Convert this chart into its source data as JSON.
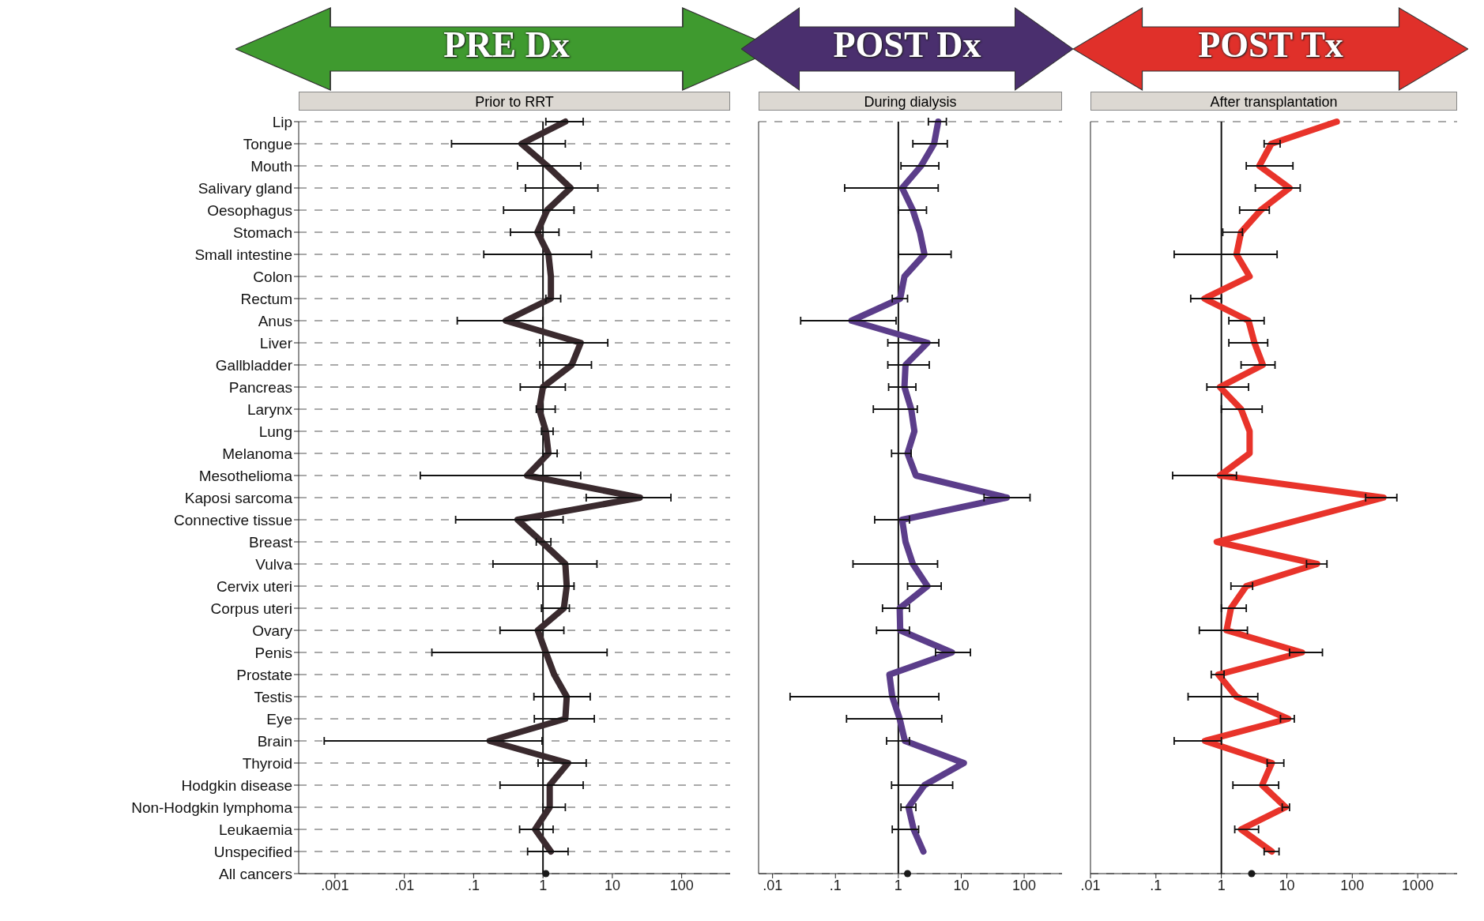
{
  "chart_data": [
    {
      "type": "line",
      "title": "PRE Dx",
      "subtitle": "Prior to RRT",
      "categories": [
        "Lip",
        "Tongue",
        "Mouth",
        "Salivary gland",
        "Oesophagus",
        "Stomach",
        "Small intestine",
        "Colon",
        "Rectum",
        "Anus",
        "Liver",
        "Gallbladder",
        "Pancreas",
        "Larynx",
        "Lung",
        "Melanoma",
        "Mesothelioma",
        "Kaposi sarcoma",
        "Connective tissue",
        "Breast",
        "Vulva",
        "Cervix uteri",
        "Corpus uteri",
        "Ovary",
        "Penis",
        "Prostate",
        "Testis",
        "Eye",
        "Brain",
        "Thyroid",
        "Hodgkin disease",
        "Non-Hodgkin lymphoma",
        "Leukaemia",
        "Unspecified",
        "All cancers"
      ],
      "series": [
        {
          "color": "#3a2a2e",
          "values": [
            2.1,
            0.49,
            1.15,
            2.5,
            1.15,
            0.83,
            1.2,
            1.3,
            1.3,
            0.29,
            3.5,
            2.6,
            1.0,
            0.88,
            1.1,
            1.2,
            0.59,
            25,
            0.43,
            0.96,
            2.1,
            2.2,
            2.0,
            0.84,
            1.1,
            1.45,
            2.2,
            2.1,
            0.17,
            2.3,
            1.25,
            1.25,
            0.77,
            1.3,
            null
          ],
          "errors": [
            [
              1.1,
              3.8
            ],
            [
              0.048,
              2.1
            ],
            [
              0.43,
              3.5
            ],
            [
              0.56,
              6.2
            ],
            [
              0.27,
              2.8
            ],
            [
              0.34,
              1.7
            ],
            [
              0.14,
              5.0
            ],
            null,
            [
              1.1,
              1.8
            ],
            [
              0.058,
              1.0
            ],
            [
              0.9,
              8.6
            ],
            [
              0.9,
              5.0
            ],
            [
              0.47,
              2.1
            ],
            [
              0.8,
              1.5
            ],
            [
              0.95,
              1.4
            ],
            [
              1.0,
              1.6
            ],
            [
              0.017,
              3.5
            ],
            [
              4.2,
              70
            ],
            [
              0.055,
              1.95
            ],
            [
              0.8,
              1.3
            ],
            [
              0.19,
              6
            ],
            [
              0.85,
              2.8
            ],
            [
              0.95,
              2.4
            ],
            [
              0.24,
              2.0
            ],
            [
              0.025,
              8.4
            ],
            null,
            [
              0.74,
              4.8
            ],
            [
              0.75,
              5.5
            ],
            [
              0.0007,
              0.97
            ],
            [
              0.85,
              4.2
            ],
            [
              0.24,
              3.8
            ],
            [
              1.0,
              2.1
            ],
            [
              0.46,
              1.4
            ],
            [
              0.6,
              2.3
            ],
            null
          ]
        },
        {
          "type": "scatter",
          "color": "#1a1a1a",
          "values": [
            null,
            null,
            null,
            null,
            null,
            null,
            null,
            null,
            null,
            null,
            null,
            null,
            null,
            null,
            null,
            null,
            null,
            null,
            null,
            null,
            null,
            null,
            null,
            null,
            null,
            null,
            null,
            null,
            null,
            null,
            null,
            null,
            null,
            null,
            1.1
          ]
        }
      ],
      "orientation": "horizontal",
      "log": "x",
      "xlim": [
        0.0003,
        500
      ],
      "xticks": [
        {
          "value": 0.001,
          "label": ".001"
        },
        {
          "value": 0.01,
          "label": ".01"
        },
        {
          "value": 0.1,
          "label": ".1"
        },
        1,
        10,
        100
      ],
      "grid": "y",
      "ref_lines": [
        {
          "axis": "x",
          "value": 1
        }
      ]
    },
    {
      "type": "line",
      "title": "POST Dx",
      "subtitle": "During dialysis",
      "categories": [
        null,
        null,
        null,
        null,
        null,
        null,
        null,
        null,
        null,
        null,
        null,
        null,
        null,
        null,
        null,
        null,
        null,
        null,
        null,
        null,
        null,
        null,
        null,
        null,
        null,
        null,
        null,
        null,
        null,
        null,
        null,
        null,
        null,
        null,
        null
      ],
      "series": [
        {
          "color": "#5b3d8a",
          "values": [
            4.3,
            3.7,
            2.3,
            1.15,
            1.7,
            2.2,
            2.6,
            1.25,
            1.07,
            0.18,
            2.9,
            1.3,
            1.25,
            1.6,
            1.8,
            1.4,
            1.9,
            53,
            1.15,
            1.3,
            1.7,
            2.9,
            1.05,
            1.07,
            7.1,
            0.72,
            0.8,
            1.05,
            1.27,
            11,
            2.6,
            1.45,
            1.75,
            2.5,
            null
          ],
          "errors": [
            [
              3.0,
              5.8
            ],
            [
              1.7,
              6.0
            ],
            [
              1.1,
              4.4
            ],
            [
              0.14,
              4.3
            ],
            [
              1.0,
              2.8
            ],
            null,
            [
              1.0,
              6.9
            ],
            null,
            [
              0.8,
              1.4
            ],
            [
              0.028,
              0.92
            ],
            [
              0.68,
              4.4
            ],
            [
              0.68,
              3.1
            ],
            [
              0.7,
              1.9
            ],
            [
              0.4,
              2.0
            ],
            null,
            [
              0.78,
              1.6
            ],
            null,
            [
              23,
              124
            ],
            [
              0.42,
              1.5
            ],
            null,
            [
              0.19,
              4.2
            ],
            [
              1.4,
              4.8
            ],
            [
              0.56,
              1.5
            ],
            [
              0.45,
              1.5
            ],
            [
              3.9,
              14
            ],
            null,
            [
              0.019,
              4.4
            ],
            [
              0.15,
              4.9
            ],
            [
              0.65,
              1.5
            ],
            null,
            [
              0.78,
              7.3
            ],
            [
              1.1,
              1.9
            ],
            [
              0.8,
              2.1
            ],
            null,
            null
          ]
        },
        {
          "type": "scatter",
          "color": "#1a1a1a",
          "values": [
            null,
            null,
            null,
            null,
            null,
            null,
            null,
            null,
            null,
            null,
            null,
            null,
            null,
            null,
            null,
            null,
            null,
            null,
            null,
            null,
            null,
            null,
            null,
            null,
            null,
            null,
            null,
            null,
            null,
            null,
            null,
            null,
            null,
            null,
            1.4
          ]
        }
      ],
      "orientation": "horizontal",
      "log": "x",
      "xlim": [
        0.006,
        400
      ],
      "xticks": [
        {
          "value": 0.01,
          "label": ".01"
        },
        {
          "value": 0.1,
          "label": ".1"
        },
        1,
        10,
        100
      ],
      "grid": "y",
      "tick_labels": "x",
      "ref_lines": [
        {
          "axis": "x",
          "value": 1
        }
      ]
    },
    {
      "type": "line",
      "title": "POST Tx",
      "subtitle": "After transplantation",
      "categories": [
        null,
        null,
        null,
        null,
        null,
        null,
        null,
        null,
        null,
        null,
        null,
        null,
        null,
        null,
        null,
        null,
        null,
        null,
        null,
        null,
        null,
        null,
        null,
        null,
        null,
        null,
        null,
        null,
        null,
        null,
        null,
        null,
        null,
        null,
        null
      ],
      "series": [
        {
          "color": "#e8332a",
          "values": [
            58,
            5.8,
            3.8,
            11,
            4.0,
            2.0,
            1.7,
            2.7,
            0.55,
            2.6,
            3.2,
            4.3,
            0.95,
            2.0,
            2.7,
            2.7,
            0.95,
            300,
            16,
            0.85,
            29,
            2.4,
            1.4,
            1.2,
            17,
            0.9,
            1.7,
            10.5,
            0.56,
            5.9,
            4.2,
            9.6,
            2.0,
            5.9,
            null
          ],
          "errors": [
            null,
            [
              4.5,
              7.9
            ],
            [
              2.4,
              12.4
            ],
            [
              3.3,
              16
            ],
            [
              1.9,
              5.4
            ],
            [
              1.05,
              2.1
            ],
            [
              0.19,
              7.1
            ],
            null,
            [
              0.34,
              1.0
            ],
            [
              1.3,
              4.5
            ],
            [
              1.3,
              5.1
            ],
            [
              2.0,
              6.6
            ],
            [
              0.6,
              2.6
            ],
            [
              1.0,
              4.2
            ],
            null,
            null,
            [
              0.18,
              1.7
            ],
            [
              160,
              480
            ],
            null,
            null,
            [
              20,
              41
            ],
            [
              1.4,
              3.0
            ],
            [
              1.0,
              2.4
            ],
            [
              0.46,
              2.5
            ],
            [
              11,
              35
            ],
            [
              0.7,
              1.1
            ],
            [
              0.31,
              3.6
            ],
            [
              8,
              13
            ],
            [
              0.19,
              1.0
            ],
            [
              5,
              9
            ],
            [
              1.5,
              7.5
            ],
            [
              8.5,
              11
            ],
            [
              1.6,
              3.7
            ],
            [
              4.5,
              7.6
            ],
            null
          ]
        },
        {
          "type": "scatter",
          "color": "#1a1a1a",
          "values": [
            null,
            null,
            null,
            null,
            null,
            null,
            null,
            null,
            null,
            null,
            null,
            null,
            null,
            null,
            null,
            null,
            null,
            null,
            null,
            null,
            null,
            null,
            null,
            null,
            null,
            null,
            null,
            null,
            null,
            null,
            null,
            null,
            null,
            null,
            2.9
          ]
        }
      ],
      "orientation": "horizontal",
      "log": "x",
      "xlim": [
        0.01,
        4000
      ],
      "xticks": [
        {
          "value": 0.01,
          "label": ".01"
        },
        {
          "value": 0.1,
          "label": ".1"
        },
        1,
        10,
        100,
        1000
      ],
      "grid": "y",
      "tick_labels": "x",
      "ref_lines": [
        {
          "axis": "x",
          "value": 1
        }
      ]
    }
  ]
}
